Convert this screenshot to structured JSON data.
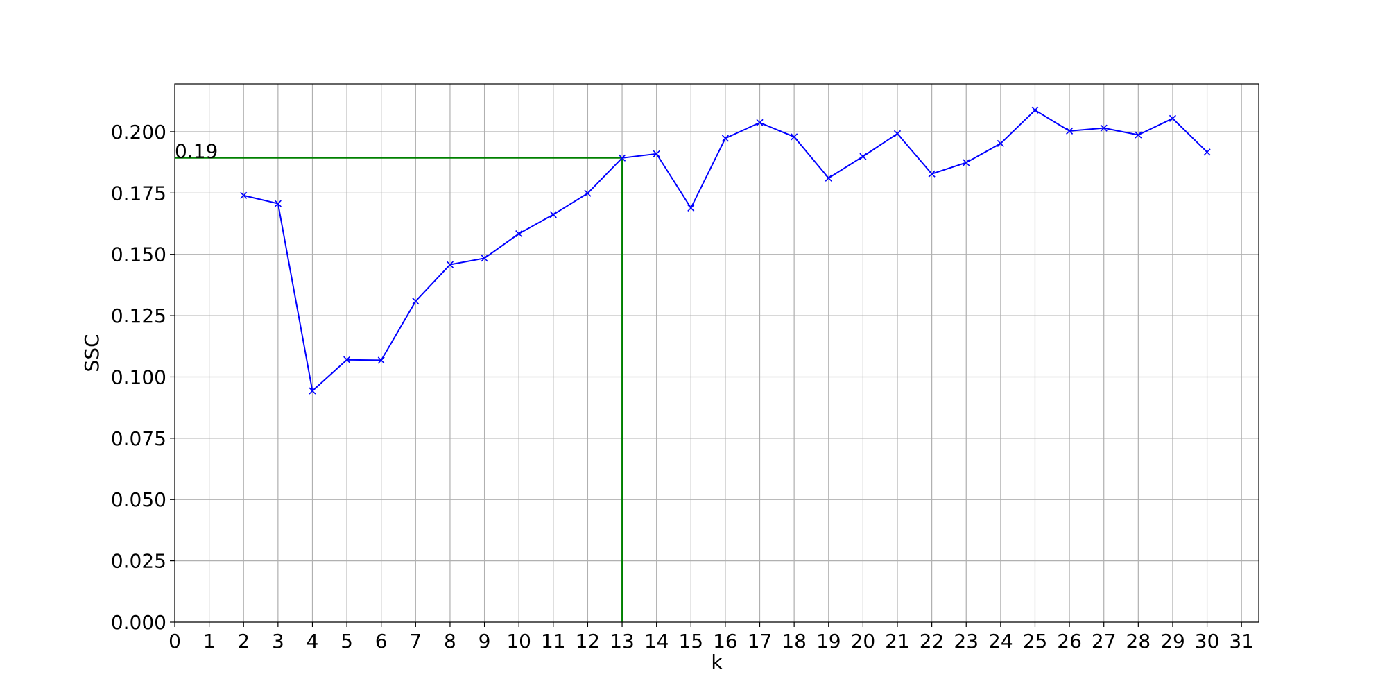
{
  "chart_data": {
    "type": "line",
    "title": "",
    "xlabel": "k",
    "ylabel": "SSC",
    "xlim": [
      0,
      31.5
    ],
    "ylim": [
      0,
      0.2195
    ],
    "x_ticks": [
      0,
      1,
      2,
      3,
      4,
      5,
      6,
      7,
      8,
      9,
      10,
      11,
      12,
      13,
      14,
      15,
      16,
      17,
      18,
      19,
      20,
      21,
      22,
      23,
      24,
      25,
      26,
      27,
      28,
      29,
      30,
      31
    ],
    "x_tick_labels": [
      "0",
      "1",
      "2",
      "3",
      "4",
      "5",
      "6",
      "7",
      "8",
      "9",
      "10",
      "11",
      "12",
      "13",
      "14",
      "15",
      "16",
      "17",
      "18",
      "19",
      "20",
      "21",
      "22",
      "23",
      "24",
      "25",
      "26",
      "27",
      "28",
      "29",
      "30",
      "31"
    ],
    "y_ticks": [
      0,
      0.025,
      0.05,
      0.075,
      0.1,
      0.125,
      0.15,
      0.175,
      0.2
    ],
    "y_tick_labels": [
      "0.000",
      "0.025",
      "0.050",
      "0.075",
      "0.100",
      "0.125",
      "0.150",
      "0.175",
      "0.200"
    ],
    "grid": true,
    "series": [
      {
        "color": "#0000ff",
        "marker": "x",
        "x": [
          2,
          3,
          4,
          5,
          6,
          7,
          8,
          9,
          10,
          11,
          12,
          13,
          14,
          15,
          16,
          17,
          18,
          19,
          20,
          21,
          22,
          23,
          24,
          25,
          26,
          27,
          28,
          29,
          30
        ],
        "y": [
          0.174,
          0.1707,
          0.0943,
          0.107,
          0.1068,
          0.1309,
          0.1458,
          0.1484,
          0.1584,
          0.1662,
          0.1749,
          0.1893,
          0.191,
          0.1689,
          0.1973,
          0.2037,
          0.1979,
          0.1811,
          0.1899,
          0.1992,
          0.1828,
          0.1874,
          0.1952,
          0.2088,
          0.2003,
          0.2015,
          0.1987,
          0.2054,
          0.1917
        ]
      }
    ],
    "reference_lines": {
      "color": "#008000",
      "x": 13,
      "y": 0.1893
    },
    "annotation": {
      "text": "0.19",
      "x": 0,
      "y": 0.19
    }
  }
}
